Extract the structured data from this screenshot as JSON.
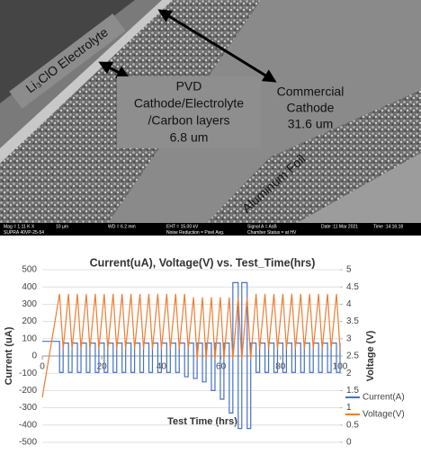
{
  "sem_image": {
    "electrolyte_label": "Li₃ClO Electrolyte",
    "pvd_label": [
      "PVD",
      "Cathode/Electrolyte",
      "/Carbon layers",
      "6.8 um"
    ],
    "commercial_label": [
      "Commercial",
      "Cathode",
      "31.6 um"
    ],
    "foil_label": "Aluminum Foil",
    "info_row1": [
      "Mag =  1.11 K X",
      "10 µm",
      "WD =  6.2 mm",
      "EHT = 15.00 kV",
      "Signal A = AsB",
      "Date :11 Mar 2021",
      "Time :14:16:18"
    ],
    "info_row2": [
      "SUPRA 40VP-25-54",
      "Noise Reduction = Pixel Avg.",
      "Chamber Status = at HV"
    ]
  },
  "chart_data": {
    "type": "line",
    "title": "Current(uA), Voltage(V) vs. Test_Time(hrs)",
    "x_label": "Test Time (hrs)",
    "y_label": "Current (uA)",
    "y2_label": "Voltage (V)",
    "xlim": [
      0,
      100
    ],
    "xticks": [
      0,
      20,
      40,
      60,
      80,
      100
    ],
    "ylim": [
      -500,
      500
    ],
    "yticks": [
      -500,
      -400,
      -300,
      -200,
      -100,
      0,
      100,
      200,
      300,
      400,
      500
    ],
    "y2lim": [
      0,
      5
    ],
    "y2ticks": [
      0,
      0.5,
      1,
      1.5,
      2,
      2.5,
      3,
      3.5,
      4,
      4.5,
      5
    ],
    "grid": true,
    "legend": "right",
    "x": [
      0,
      5.8,
      7,
      8.8,
      10,
      11.8,
      13,
      14.8,
      16,
      17.8,
      19,
      20.8,
      22,
      23.8,
      25,
      26.8,
      28,
      29.8,
      31,
      32.8,
      34,
      35.8,
      37,
      38.8,
      40,
      41.8,
      43,
      44.8,
      46,
      47.8,
      49,
      50.8,
      52,
      53.8,
      55,
      56.8,
      58,
      59.8,
      61,
      62.8,
      64,
      65.8,
      67,
      68.8,
      70,
      71.8,
      73,
      74.8,
      76,
      77.8,
      79,
      80.8,
      82,
      83.8,
      85,
      86.8,
      88,
      89.8,
      91,
      92.8,
      94,
      95.8,
      97,
      98.8,
      100
    ],
    "series": [
      {
        "name": "Current(A)",
        "color": "#4472c4",
        "step": true,
        "values": [
          85,
          -95,
          75,
          -95,
          75,
          -95,
          75,
          -95,
          75,
          -95,
          75,
          -95,
          75,
          -95,
          75,
          -95,
          75,
          -95,
          75,
          -95,
          75,
          -95,
          75,
          -95,
          75,
          -95,
          75,
          -95,
          75,
          -120,
          75,
          -130,
          75,
          -150,
          75,
          -200,
          75,
          -250,
          75,
          -330,
          425,
          -420,
          425,
          -420,
          75,
          -95,
          75,
          -95,
          75,
          -95,
          75,
          -95,
          75,
          -95,
          75,
          -95,
          75,
          -95,
          75,
          -95,
          75,
          -95,
          75,
          -95,
          75
        ]
      },
      {
        "name": "Voltage(V)",
        "color": "#ed7d31",
        "axis": "y2",
        "values": [
          1.3,
          4.3,
          2.7,
          4.3,
          2.7,
          4.3,
          2.7,
          4.3,
          2.7,
          4.3,
          2.7,
          4.3,
          2.7,
          4.3,
          2.7,
          4.3,
          2.7,
          4.3,
          2.7,
          4.3,
          2.7,
          4.3,
          2.7,
          4.3,
          2.7,
          4.3,
          2.7,
          4.3,
          2.7,
          4.3,
          2.7,
          4.2,
          2.4,
          4.2,
          2.4,
          4.2,
          2.4,
          4.2,
          2.4,
          4.2,
          2.4,
          4.2,
          2.4,
          4.2,
          2.4,
          4.3,
          2.7,
          4.3,
          2.7,
          4.3,
          2.7,
          4.3,
          2.7,
          4.3,
          2.7,
          4.3,
          2.7,
          4.3,
          2.7,
          4.3,
          2.7,
          4.3,
          2.7,
          4.3,
          2.7
        ]
      }
    ]
  }
}
